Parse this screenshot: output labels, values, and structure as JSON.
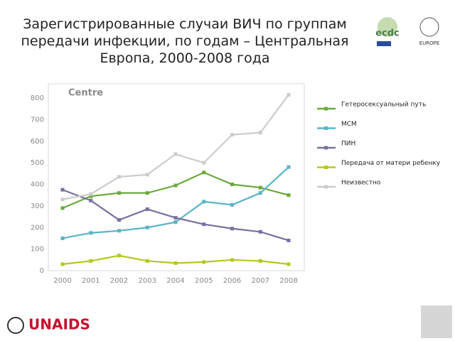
{
  "chart_data": {
    "type": "line",
    "title": "Зарегистрированные случаи ВИЧ по группам передачи инфекции, по годам – Центральная Европа, 2000-2008 года",
    "subtitle": "Centre",
    "categories": [
      "2000",
      "2001",
      "2002",
      "2003",
      "2004",
      "2005",
      "2006",
      "2007",
      "2008"
    ],
    "series": [
      {
        "name": "Гетеросексуальный путь",
        "color": "#6aaa3a",
        "values": [
          290,
          345,
          360,
          360,
          395,
          455,
          400,
          385,
          350
        ]
      },
      {
        "name": "МСМ",
        "color": "#5ab4c4",
        "values": [
          150,
          175,
          185,
          200,
          225,
          320,
          305,
          360,
          480
        ]
      },
      {
        "name": "ПИН",
        "color": "#7b6fa0",
        "values": [
          375,
          325,
          235,
          285,
          245,
          215,
          195,
          180,
          140
        ]
      },
      {
        "name": "Передача от матери ребенку",
        "color": "#b5c81e",
        "values": [
          30,
          45,
          70,
          45,
          35,
          40,
          50,
          45,
          30
        ]
      },
      {
        "name": "Неизвестно",
        "color": "#cccccc",
        "values": [
          330,
          355,
          435,
          445,
          540,
          500,
          630,
          640,
          815
        ]
      }
    ],
    "ylim": [
      0,
      800
    ],
    "yticks": [
      0,
      100,
      200,
      300,
      400,
      500,
      600,
      700,
      800
    ],
    "grid": false
  },
  "logos": {
    "ecdc": "ecdc",
    "who": "EUROPE",
    "unaids": "UNAIDS"
  }
}
